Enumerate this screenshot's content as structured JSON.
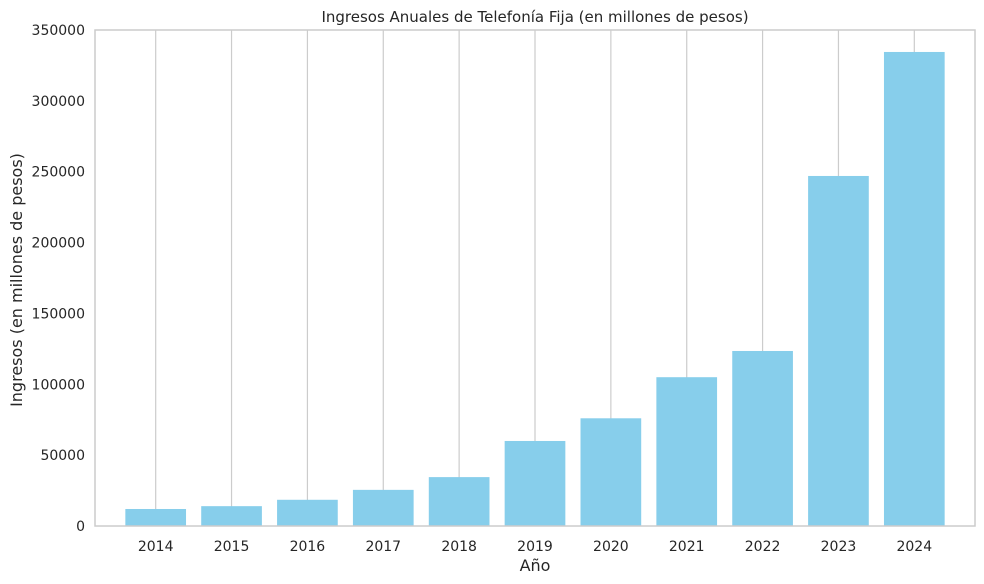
{
  "chart_data": {
    "type": "bar",
    "title": "Ingresos Anuales de Telefonía Fija (en millones de pesos)",
    "xlabel": "Año",
    "ylabel": "Ingresos (en millones de pesos)",
    "categories": [
      "2014",
      "2015",
      "2016",
      "2017",
      "2018",
      "2019",
      "2020",
      "2021",
      "2022",
      "2023",
      "2024"
    ],
    "values": [
      12000,
      14000,
      18500,
      25500,
      34500,
      60000,
      76000,
      105000,
      123500,
      247000,
      334500
    ],
    "ylim": [
      0,
      350000
    ],
    "yticks": [
      0,
      50000,
      100000,
      150000,
      200000,
      250000,
      300000,
      350000
    ],
    "ytick_labels": [
      "0",
      "50000",
      "100000",
      "150000",
      "200000",
      "250000",
      "300000",
      "350000"
    ],
    "grid": "vertical",
    "bar_color": "#87CEEB",
    "grid_color": "#cccccc",
    "spine_color": "#cccccc"
  }
}
